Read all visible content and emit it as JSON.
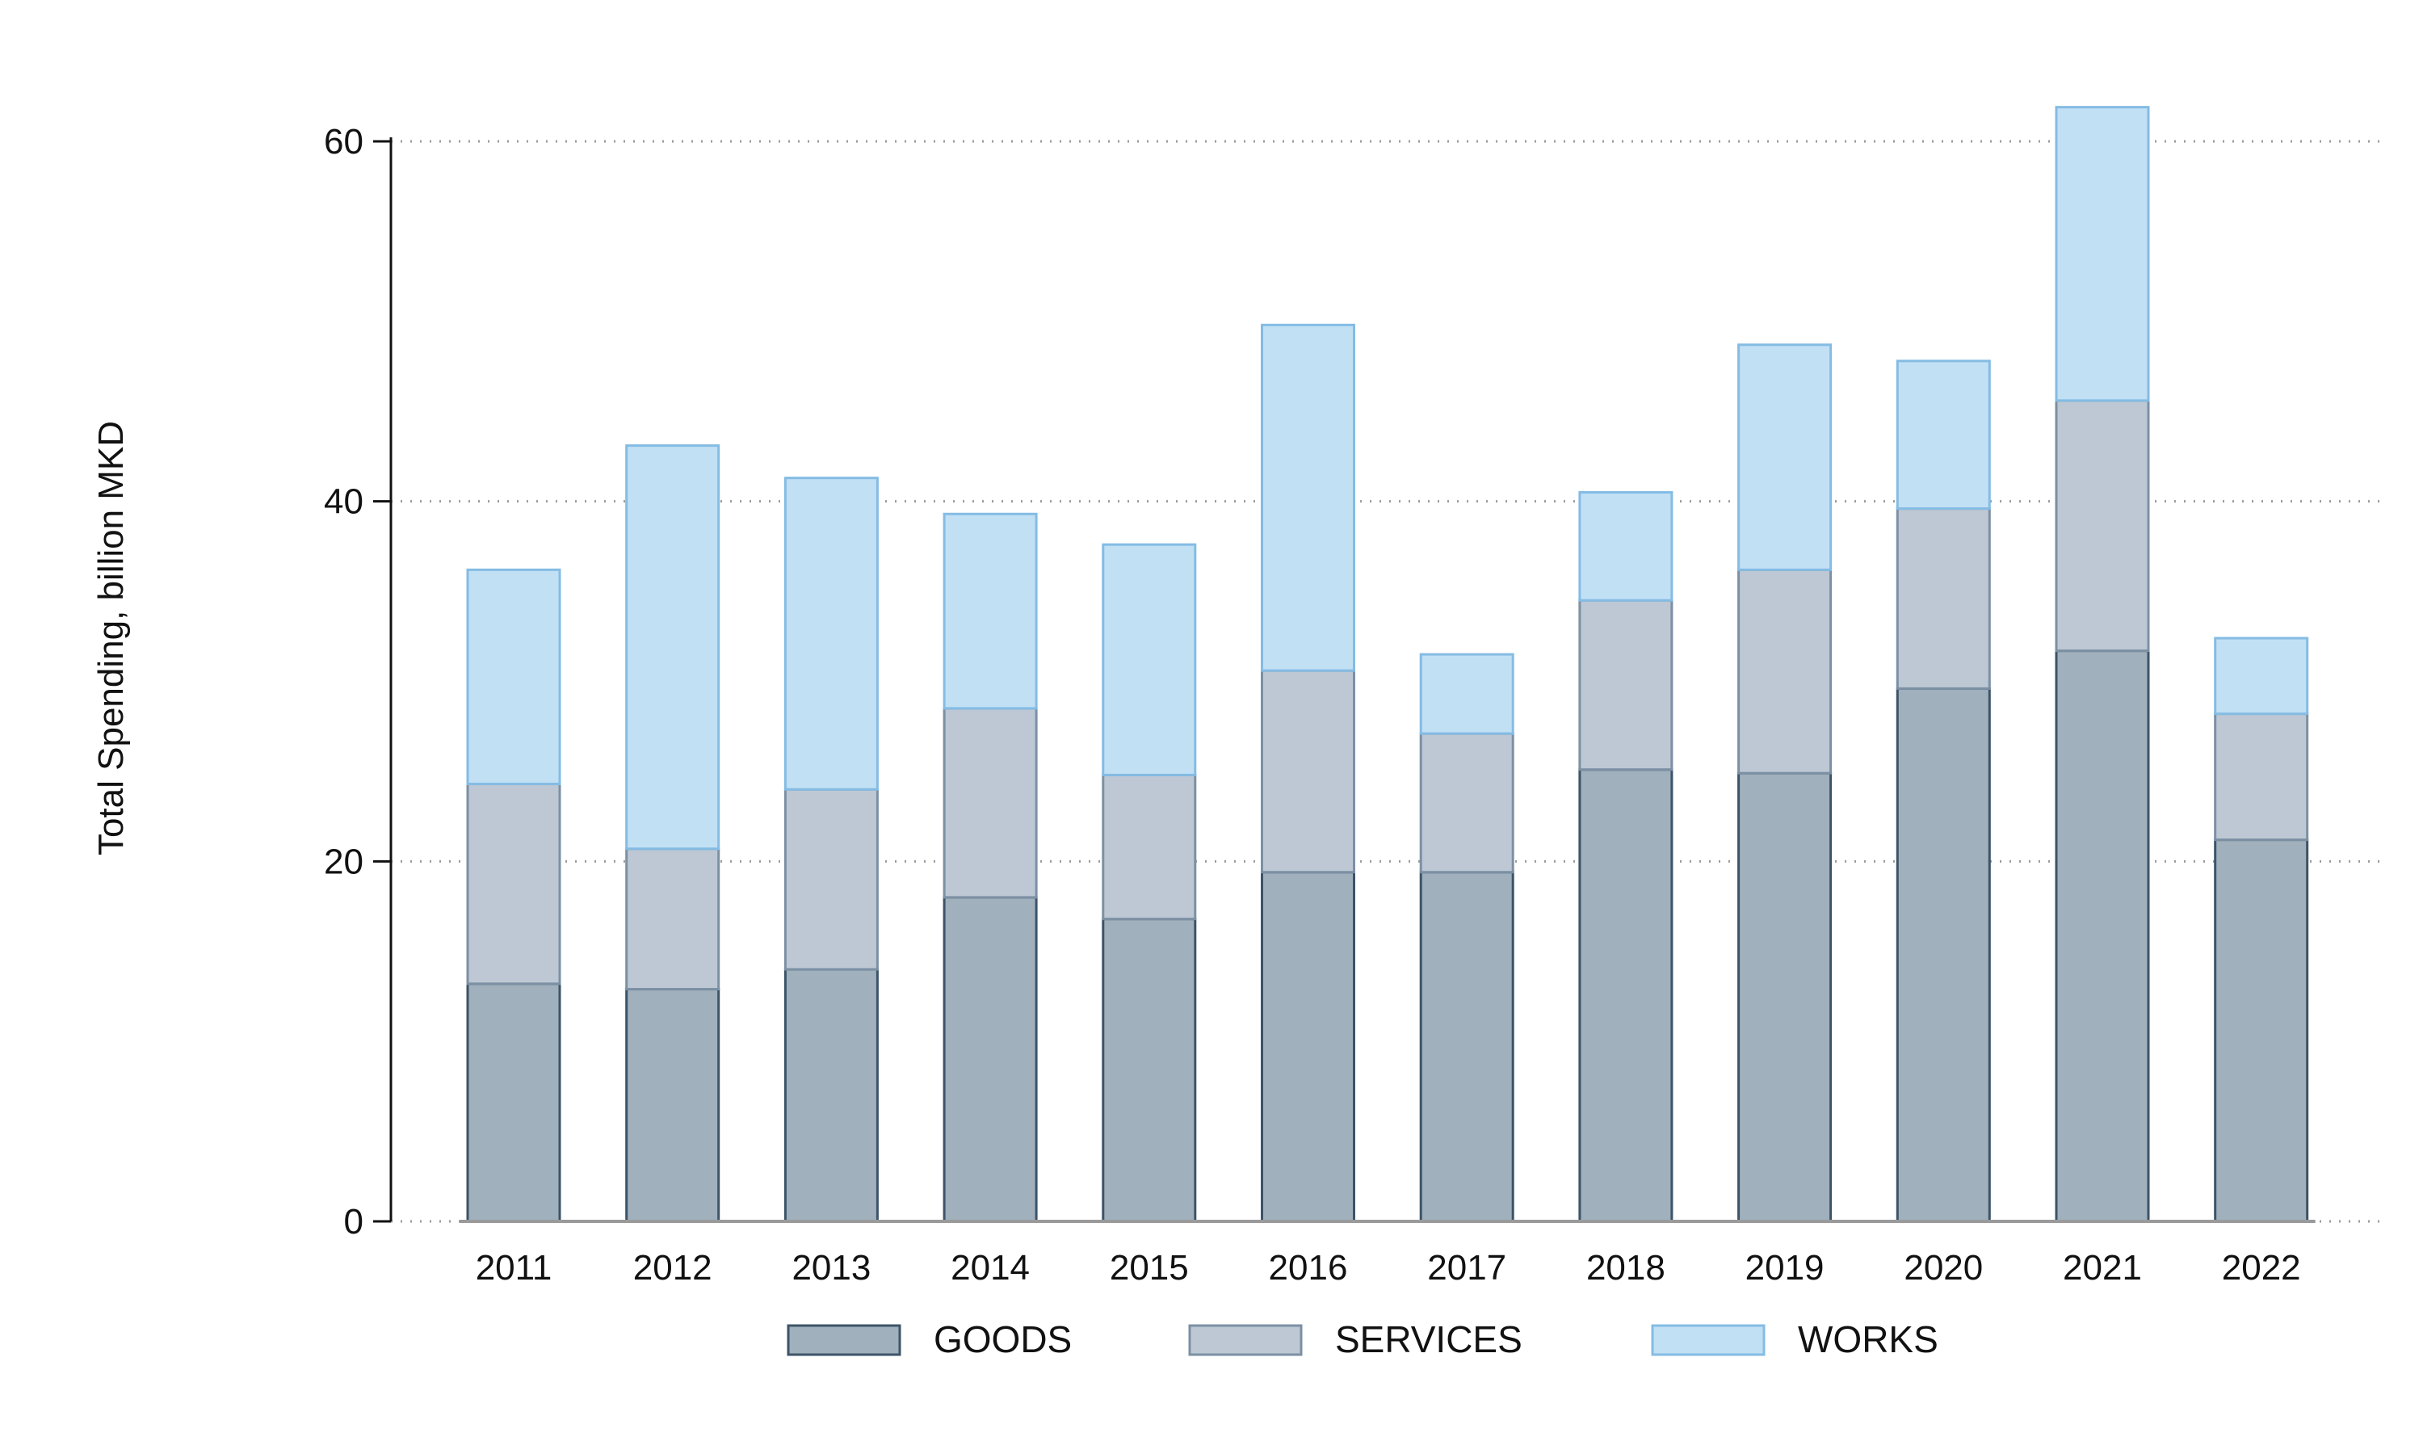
{
  "chart_data": {
    "type": "bar",
    "stacked": true,
    "title": "",
    "xlabel": "",
    "ylabel": "Total Spending, billion MKD",
    "ylim": [
      0,
      62
    ],
    "yticks": [
      0,
      20,
      40,
      60
    ],
    "grid": "horizontal-dotted",
    "legend_position": "bottom",
    "categories": [
      "2011",
      "2012",
      "2013",
      "2014",
      "2015",
      "2016",
      "2017",
      "2018",
      "2019",
      "2020",
      "2021",
      "2022"
    ],
    "series": [
      {
        "name": "GOODS",
        "color": "#a0b0bc",
        "stroke": "#3c5468",
        "values": [
          13.2,
          12.9,
          14.0,
          18.0,
          16.8,
          19.4,
          19.4,
          25.1,
          24.9,
          29.6,
          31.7,
          21.2
        ]
      },
      {
        "name": "SERVICES",
        "color": "#bdc8d4",
        "stroke": "#7c90a4",
        "values": [
          11.1,
          7.8,
          10.0,
          10.5,
          8.0,
          11.2,
          7.7,
          9.4,
          11.3,
          10.0,
          13.9,
          7.0
        ]
      },
      {
        "name": "WORKS",
        "color": "#c2e0f4",
        "stroke": "#84bce4",
        "values": [
          11.9,
          22.4,
          17.3,
          10.8,
          12.8,
          19.2,
          4.4,
          6.0,
          12.5,
          8.2,
          16.3,
          4.2
        ]
      }
    ]
  }
}
